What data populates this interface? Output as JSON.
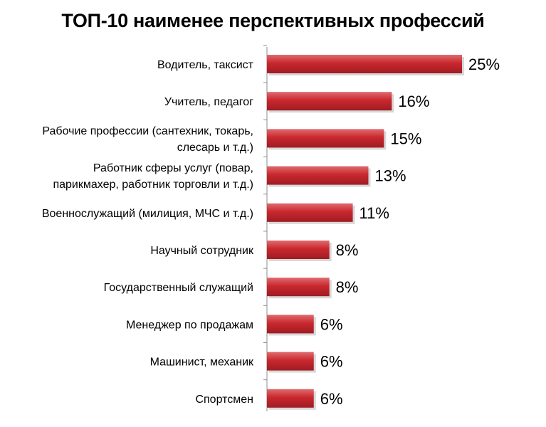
{
  "chart_data": {
    "type": "bar",
    "orientation": "horizontal",
    "title": "ТОП-10 наименее перспективных профессий",
    "categories": [
      [
        "Водитель, таксист"
      ],
      [
        "Учитель, педагог"
      ],
      [
        "Рабочие профессии (сантехник, токарь,",
        "слесарь и т.д.)"
      ],
      [
        "Работник сферы услуг (повар,",
        "парикмахер, работник торговли и т.д.)"
      ],
      [
        "Военнослужащий (милиция, МЧС и т.д.)"
      ],
      [
        "Научный сотрудник"
      ],
      [
        "Государственный служащий"
      ],
      [
        "Менеджер по продажам"
      ],
      [
        "Машинист, механик"
      ],
      [
        "Спортсмен"
      ]
    ],
    "values": [
      25,
      16,
      15,
      13,
      11,
      8,
      8,
      6,
      6,
      6
    ],
    "value_labels": [
      "25%",
      "16%",
      "15%",
      "13%",
      "11%",
      "8%",
      "8%",
      "6%",
      "6%",
      "6%"
    ],
    "bar_color": "#c8282e",
    "bar_color_light": "#e06a6e",
    "bar_color_dark": "#a01c22",
    "xlim": [
      0,
      30
    ],
    "grid": false,
    "legend": "none"
  }
}
